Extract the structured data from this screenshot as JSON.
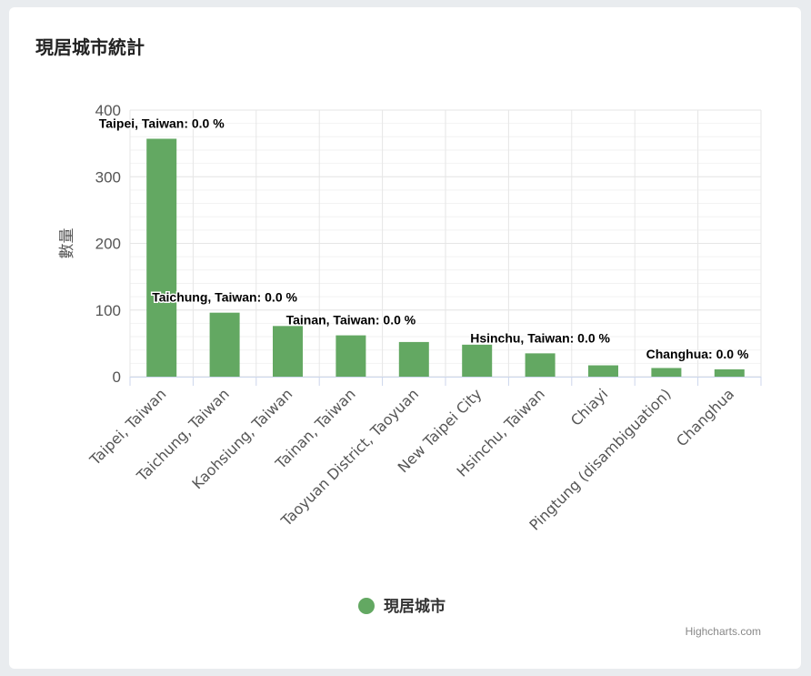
{
  "card": {
    "title": "現居城市統計"
  },
  "credits": "Highcharts.com",
  "colors": {
    "bar": "#63a862",
    "grid": "#e6e6e6",
    "axis": "#ccd6eb"
  },
  "chart_data": {
    "type": "bar",
    "ylabel": "數量",
    "ylim": [
      0,
      400
    ],
    "yticks": [
      0,
      100,
      200,
      300,
      400
    ],
    "categories": [
      "Taipei, Taiwan",
      "Taichung, Taiwan",
      "Kaohsiung, Taiwan",
      "Tainan, Taiwan",
      "Taoyuan District, Taoyuan",
      "New Taipei City",
      "Hsinchu, Taiwan",
      "Chiayi",
      "Pingtung (disambiguation)",
      "Changhua"
    ],
    "series": [
      {
        "name": "現居城市",
        "values": [
          357,
          96,
          76,
          62,
          52,
          48,
          35,
          17,
          13,
          11
        ]
      }
    ],
    "data_labels": [
      {
        "index": 0,
        "text": "Taipei, Taiwan: 0.0 %"
      },
      {
        "index": 1,
        "text": "Taichung, Taiwan: 0.0 %"
      },
      {
        "index": 3,
        "text": "Tainan, Taiwan: 0.0 %"
      },
      {
        "index": 6,
        "text": "Hsinchu, Taiwan: 0.0 %"
      },
      {
        "index": 9,
        "text": "Changhua: 0.0 %"
      }
    ],
    "legend": {
      "position": "bottom-center"
    },
    "grid": true
  }
}
